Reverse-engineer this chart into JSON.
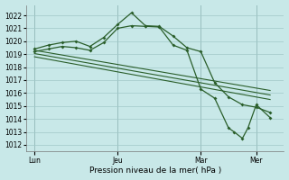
{
  "background_color": "#c8e8e8",
  "grid_color": "#a0c8c8",
  "line_color": "#2a5e2a",
  "xlabel": "Pression niveau de la mer( hPa )",
  "ylim": [
    1011.5,
    1022.8
  ],
  "yticks": [
    1012,
    1013,
    1014,
    1015,
    1016,
    1017,
    1018,
    1019,
    1020,
    1021,
    1022
  ],
  "xtick_labels": [
    "Lun",
    "Jeu",
    "Mar",
    "Mer"
  ],
  "xtick_positions": [
    0,
    30,
    60,
    80
  ],
  "xlim": [
    -3,
    90
  ],
  "vline_positions": [
    0,
    30,
    60,
    80
  ],
  "curve1_x": [
    0,
    5,
    10,
    15,
    20,
    25,
    30,
    35,
    40,
    45,
    50,
    55,
    60,
    65,
    70,
    75,
    80,
    85
  ],
  "curve1_y": [
    1019.4,
    1019.7,
    1019.9,
    1020.0,
    1019.6,
    1020.3,
    1021.3,
    1022.2,
    1021.2,
    1021.15,
    1020.4,
    1019.5,
    1019.2,
    1016.8,
    1015.7,
    1015.1,
    1014.9,
    1014.5
  ],
  "curve2_x": [
    0,
    5,
    10,
    15,
    20,
    25,
    30,
    35,
    40,
    45,
    50,
    55,
    60,
    65,
    70,
    72,
    75,
    77,
    80,
    85
  ],
  "curve2_y": [
    1019.2,
    1019.4,
    1019.6,
    1019.5,
    1019.3,
    1019.9,
    1021.0,
    1021.2,
    1021.15,
    1021.1,
    1019.7,
    1019.3,
    1016.3,
    1015.6,
    1013.3,
    1013.0,
    1012.5,
    1013.3,
    1015.1,
    1014.1
  ],
  "trend1_x": [
    0,
    85
  ],
  "trend1_y": [
    1019.3,
    1016.2
  ],
  "trend2_x": [
    0,
    85
  ],
  "trend2_y": [
    1019.05,
    1015.85
  ],
  "trend3_x": [
    0,
    85
  ],
  "trend3_y": [
    1018.8,
    1015.5
  ],
  "tick_fontsize": 5.5,
  "xlabel_fontsize": 6.5,
  "marker_size": 2.0
}
